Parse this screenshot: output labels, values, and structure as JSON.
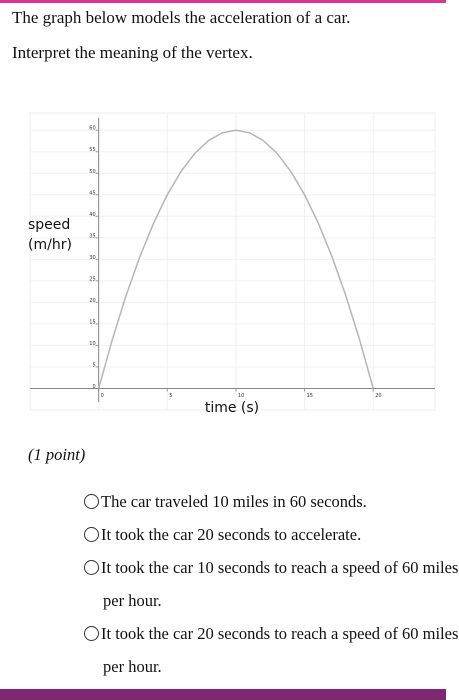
{
  "question": {
    "lines": [
      "The graph below models the acceleration of a car.",
      "Interpret the meaning of the vertex."
    ]
  },
  "chart_data": {
    "type": "line",
    "y_label_lines": [
      "speed",
      "(m/hr)"
    ],
    "x_label": "time (s)",
    "x": [
      0,
      1,
      2,
      3,
      4,
      5,
      6,
      7,
      8,
      9,
      10,
      11,
      12,
      13,
      14,
      15,
      16,
      17,
      18,
      19,
      20
    ],
    "series": [
      {
        "color": "#b5b5b5",
        "values": [
          0,
          11.4,
          21.6,
          30.6,
          38.4,
          45,
          50.4,
          54.6,
          57.6,
          59.4,
          60,
          59.4,
          57.6,
          54.6,
          50.4,
          45,
          38.4,
          30.6,
          21.6,
          11.4,
          0
        ]
      }
    ],
    "xlim": [
      -5,
      24.5
    ],
    "ylim": [
      -5,
      64
    ],
    "xticks": [
      0,
      5,
      10,
      15,
      20
    ],
    "yticks": [
      0,
      5,
      10,
      15,
      20,
      25,
      30,
      35,
      40,
      45,
      50,
      55,
      60
    ],
    "grid": true
  },
  "points": "(1 point)",
  "options": [
    "The car traveled 10 miles in 60 seconds.",
    "It took the car 20 seconds to accelerate.",
    "It took the car 10 seconds to reach a speed of 60 miles per hour.",
    "It took the car 20 seconds to reach a speed of 60 miles per hour."
  ]
}
